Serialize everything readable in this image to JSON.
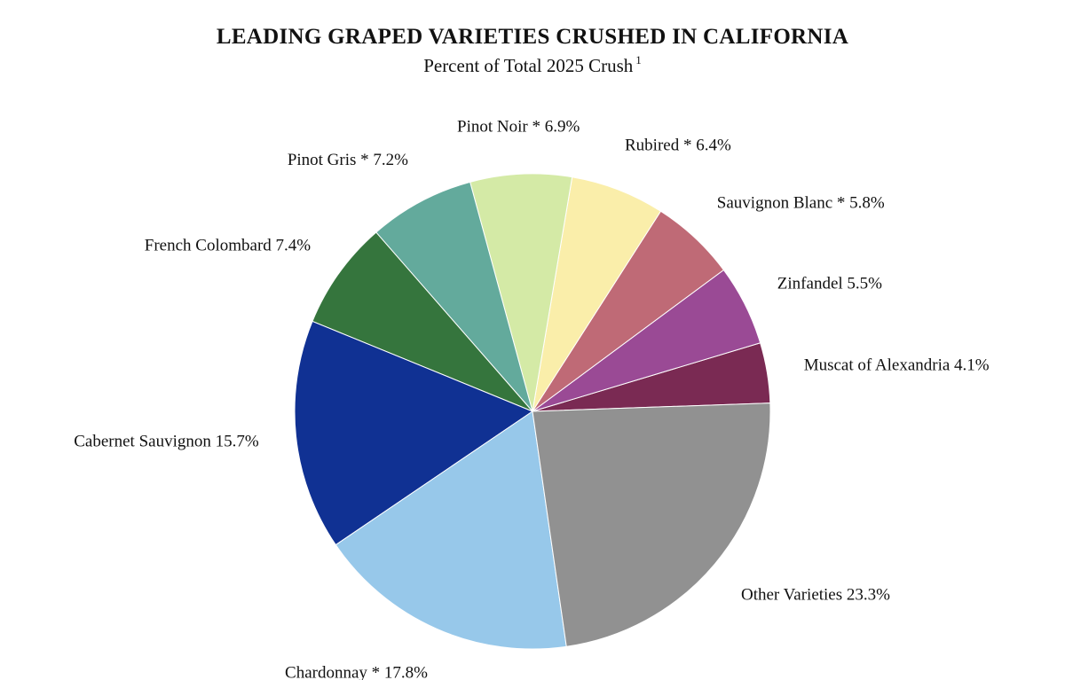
{
  "chart_data": {
    "type": "pie",
    "title": "LEADING GRAPED VARIETIES CRUSHED IN CALIFORNIA",
    "subtitle": "Percent of Total 2025 Crush",
    "subtitle_footnote": "1",
    "slices": [
      {
        "label": "Muscat of Alexandria",
        "value": 4.1,
        "text": "Muscat of Alexandria 4.1%",
        "color": "#7a2a53"
      },
      {
        "label": "Zinfandel",
        "value": 5.5,
        "text": "Zinfandel 5.5%",
        "color": "#9a4a95"
      },
      {
        "label": "Sauvignon Blanc *",
        "value": 5.8,
        "text": "Sauvignon Blanc * 5.8%",
        "color": "#bf6a76"
      },
      {
        "label": "Rubired *",
        "value": 6.4,
        "text": "Rubired * 6.4%",
        "color": "#faeeaa"
      },
      {
        "label": "Pinot Noir *",
        "value": 6.9,
        "text": "Pinot Noir * 6.9%",
        "color": "#d4eaa6"
      },
      {
        "label": "Pinot Gris *",
        "value": 7.2,
        "text": "Pinot Gris * 7.2%",
        "color": "#63aa9c"
      },
      {
        "label": "French Colombard",
        "value": 7.4,
        "text": "French Colombard 7.4%",
        "color": "#35753d"
      },
      {
        "label": "Cabernet Sauvignon",
        "value": 15.7,
        "text": "Cabernet Sauvignon 15.7%",
        "color": "#103193"
      },
      {
        "label": "Chardonnay *",
        "value": 17.8,
        "text": "Chardonnay * 17.8%",
        "color": "#97c8ea"
      },
      {
        "label": "Other Varieties",
        "value": 23.3,
        "text": "Other Varieties 23.3%",
        "color": "#919191"
      }
    ]
  }
}
